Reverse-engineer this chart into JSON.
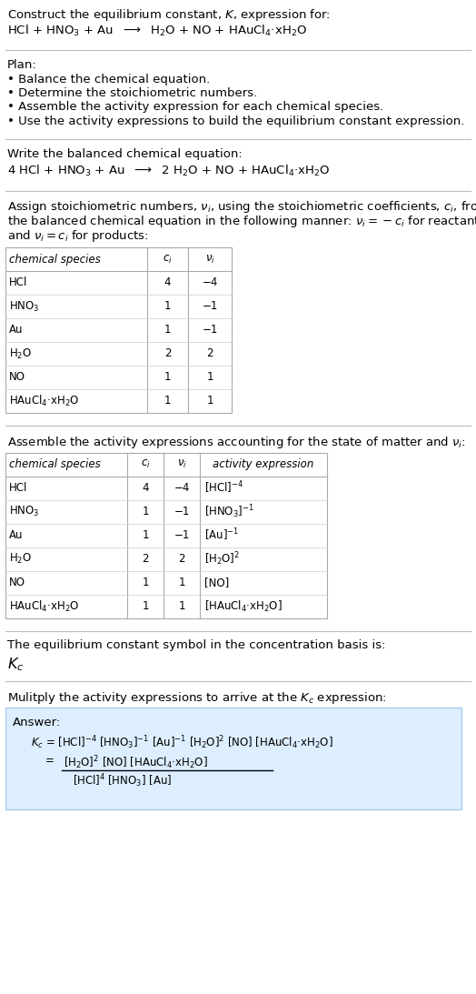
{
  "bg_color": "#ffffff",
  "text_color": "#000000",
  "light_blue_bg": "#ddeeff",
  "light_blue_border": "#aaccee",
  "title_line1": "Construct the equilibrium constant, $K$, expression for:",
  "title_line2": "HCl + HNO$_3$ + Au  $\\longrightarrow$  H$_2$O + NO + HAuCl$_4$·xH$_2$O",
  "plan_header": "Plan:",
  "plan_bullets": [
    "• Balance the chemical equation.",
    "• Determine the stoichiometric numbers.",
    "• Assemble the activity expression for each chemical species.",
    "• Use the activity expressions to build the equilibrium constant expression."
  ],
  "balanced_header": "Write the balanced chemical equation:",
  "balanced_eq": "4 HCl + HNO$_3$ + Au  $\\longrightarrow$  2 H$_2$O + NO + HAuCl$_4$·xH$_2$O",
  "stoich_intro": "Assign stoichiometric numbers, $\\nu_i$, using the stoichiometric coefficients, $c_i$, from\nthe balanced chemical equation in the following manner: $\\nu_i = -c_i$ for reactants\nand $\\nu_i = c_i$ for products:",
  "table1_cols": [
    "chemical species",
    "$c_i$",
    "$\\nu_i$"
  ],
  "table1_data": [
    [
      "HCl",
      "4",
      "−4"
    ],
    [
      "HNO$_3$",
      "1",
      "−1"
    ],
    [
      "Au",
      "1",
      "−1"
    ],
    [
      "H$_2$O",
      "2",
      "2"
    ],
    [
      "NO",
      "1",
      "1"
    ],
    [
      "HAuCl$_4$·xH$_2$O",
      "1",
      "1"
    ]
  ],
  "activity_intro": "Assemble the activity expressions accounting for the state of matter and $\\nu_i$:",
  "table2_cols": [
    "chemical species",
    "$c_i$",
    "$\\nu_i$",
    "activity expression"
  ],
  "table2_data": [
    [
      "HCl",
      "4",
      "−4",
      "[HCl]$^{-4}$"
    ],
    [
      "HNO$_3$",
      "1",
      "−1",
      "[HNO$_3$]$^{-1}$"
    ],
    [
      "Au",
      "1",
      "−1",
      "[Au]$^{-1}$"
    ],
    [
      "H$_2$O",
      "2",
      "2",
      "[H$_2$O]$^2$"
    ],
    [
      "NO",
      "1",
      "1",
      "[NO]"
    ],
    [
      "HAuCl$_4$·xH$_2$O",
      "1",
      "1",
      "[HAuCl$_4$·xH$_2$O]"
    ]
  ],
  "kc_intro": "The equilibrium constant symbol in the concentration basis is:",
  "kc_symbol": "$K_c$",
  "multiply_intro": "Mulitply the activity expressions to arrive at the $K_c$ expression:",
  "answer_label": "Answer:",
  "ans_line1": "$K_c$ = [HCl]$^{-4}$ [HNO$_3$]$^{-1}$ [Au]$^{-1}$ [H$_2$O]$^2$ [NO] [HAuCl$_4$·xH$_2$O]",
  "ans_numer": "[H$_2$O]$^2$ [NO] [HAuCl$_4$·xH$_2$O]",
  "ans_denom": "[HCl]$^4$ [HNO$_3$] [Au]",
  "ans_eq": "="
}
